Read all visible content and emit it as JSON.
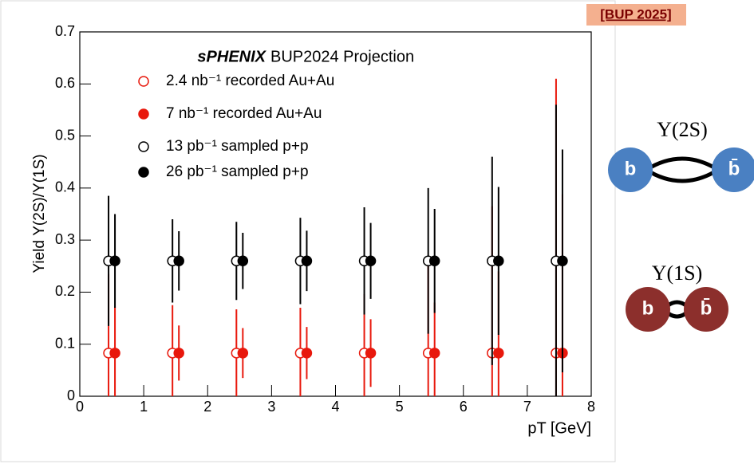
{
  "chart_data": {
    "type": "errorbar",
    "annotation_brand": "sPHENIX",
    "annotation": "BUP2024 Projection",
    "ylabel": "Yield Υ(2S)/Υ(1S)",
    "xlabel": "pT [GeV]",
    "xlim": [
      0,
      8
    ],
    "xticks": [
      0,
      1,
      2,
      3,
      4,
      5,
      6,
      7,
      8
    ],
    "ylim": [
      0,
      0.7
    ],
    "yticks": [
      0,
      0.1,
      0.2,
      0.3,
      0.4,
      0.5,
      0.6,
      0.7
    ],
    "series": [
      {
        "name": "2.4 nb⁻¹ recorded Au+Au",
        "color": "#e8180c",
        "marker": "open",
        "x": [
          0.45,
          1.45,
          2.45,
          3.45,
          4.45,
          5.45,
          6.45,
          7.45
        ],
        "values": [
          0.083,
          0.083,
          0.083,
          0.083,
          0.083,
          0.083,
          0.083,
          0.083
        ],
        "errors": [
          0.152,
          0.092,
          0.084,
          0.087,
          0.113,
          0.172,
          0.282,
          0.527
        ]
      },
      {
        "name": "7 nb⁻¹ recorded Au+Au",
        "color": "#e8180c",
        "marker": "filled",
        "x": [
          0.55,
          1.55,
          2.55,
          3.55,
          4.55,
          5.55,
          6.55,
          7.55
        ],
        "values": [
          0.083,
          0.083,
          0.083,
          0.083,
          0.083,
          0.083,
          0.083,
          0.083
        ],
        "errors": [
          0.089,
          0.053,
          0.048,
          0.05,
          0.065,
          0.097,
          0.157,
          0.305
        ]
      },
      {
        "name": "13 pb⁻¹ sampled p+p",
        "color": "#000000",
        "marker": "open",
        "x": [
          0.45,
          1.45,
          2.45,
          3.45,
          4.45,
          5.45,
          6.45,
          7.45
        ],
        "values": [
          0.26,
          0.26,
          0.26,
          0.26,
          0.26,
          0.26,
          0.26,
          0.26
        ],
        "errors": [
          0.125,
          0.08,
          0.075,
          0.083,
          0.103,
          0.14,
          0.2,
          0.3
        ]
      },
      {
        "name": "26 pb⁻¹ sampled p+p",
        "color": "#000000",
        "marker": "filled",
        "x": [
          0.55,
          1.55,
          2.55,
          3.55,
          4.55,
          5.55,
          6.55,
          7.55
        ],
        "values": [
          0.26,
          0.26,
          0.26,
          0.26,
          0.26,
          0.26,
          0.26,
          0.26
        ],
        "errors": [
          0.09,
          0.057,
          0.054,
          0.058,
          0.073,
          0.1,
          0.142,
          0.214
        ]
      }
    ]
  },
  "tag": "[BUP 2025]",
  "diagrams": [
    {
      "label": "Υ(2S)",
      "quark": "b",
      "antiquark": "b̄",
      "color": "#4a80c2"
    },
    {
      "label": "Υ(1S)",
      "quark": "b",
      "antiquark": "b̄",
      "color": "#8c2f2c"
    }
  ]
}
